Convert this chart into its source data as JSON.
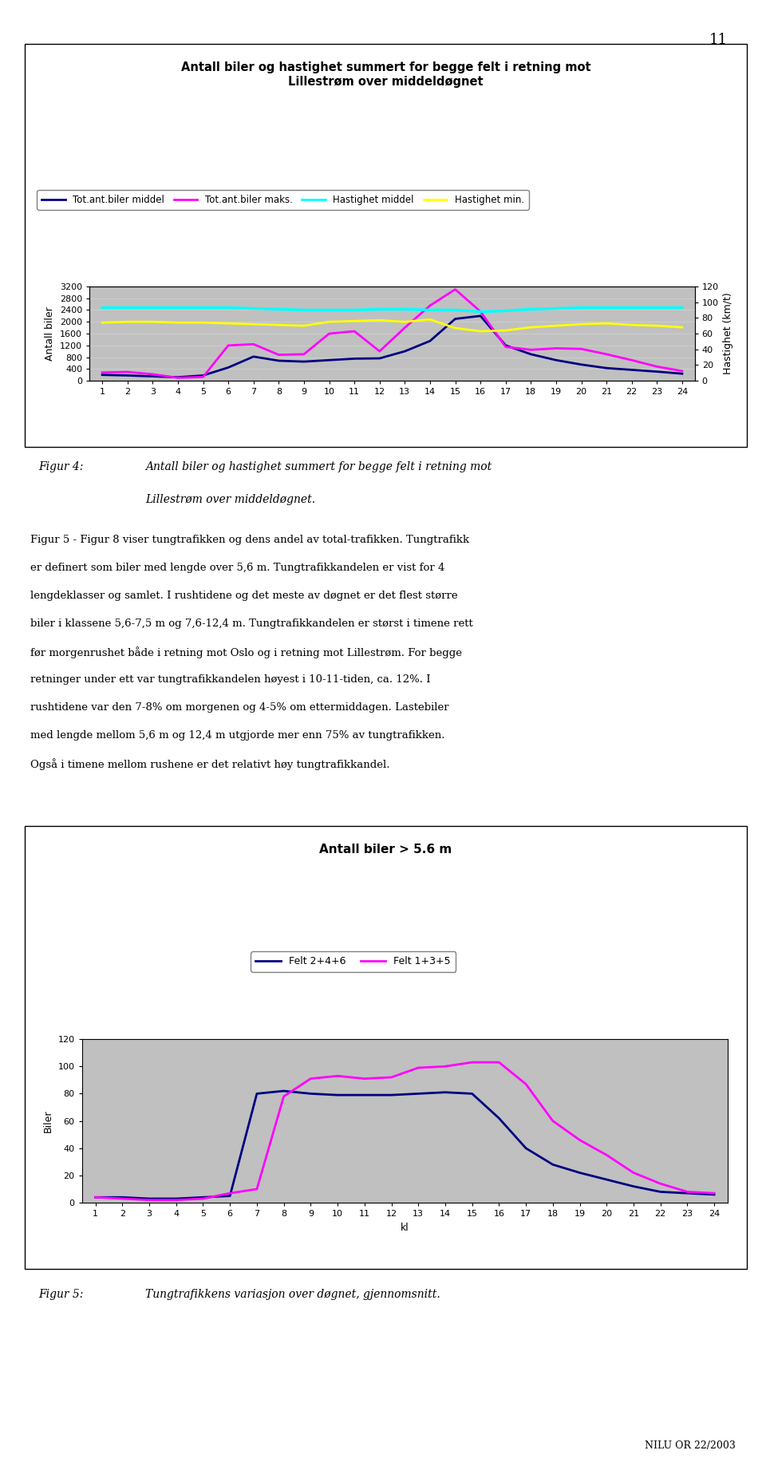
{
  "page_number": "11",
  "chart1": {
    "title": "Antall biler og hastighet summert for begge felt i retning mot\nLillestrøm over middeldøgnet",
    "x": [
      1,
      2,
      3,
      4,
      5,
      6,
      7,
      8,
      9,
      10,
      11,
      12,
      13,
      14,
      15,
      16,
      17,
      18,
      19,
      20,
      21,
      22,
      23,
      24
    ],
    "ylabel_left": "Antall biler",
    "ylabel_right": "Hastighet (km/t)",
    "ylim_left": [
      0,
      3200
    ],
    "ylim_right": [
      0,
      120
    ],
    "yticks_left": [
      0,
      400,
      800,
      1200,
      1600,
      2000,
      2400,
      2800,
      3200
    ],
    "yticks_right": [
      0,
      20,
      40,
      60,
      80,
      100,
      120
    ],
    "background_color": "#c0c0c0",
    "series": {
      "tot_middel": {
        "label": "Tot.ant.biler middel",
        "color": "#000080",
        "linewidth": 2.0,
        "values": [
          200,
          180,
          150,
          120,
          180,
          450,
          820,
          680,
          650,
          700,
          750,
          760,
          1000,
          1350,
          2100,
          2200,
          1200,
          900,
          700,
          550,
          430,
          370,
          310,
          240
        ]
      },
      "tot_maks": {
        "label": "Tot.ant.biler maks.",
        "color": "#ff00ff",
        "linewidth": 2.0,
        "values": [
          280,
          300,
          220,
          100,
          130,
          1200,
          1240,
          880,
          900,
          1600,
          1680,
          1000,
          1800,
          2550,
          3100,
          2350,
          1150,
          1050,
          1100,
          1080,
          900,
          700,
          480,
          330
        ]
      },
      "hast_middel": {
        "label": "Hastighet middel",
        "color": "#00ffff",
        "linewidth": 2.5,
        "axis": "right",
        "values": [
          93,
          93,
          93,
          93,
          93,
          93,
          92,
          91,
          90,
          90,
          90,
          91,
          91,
          90,
          90,
          88,
          89,
          91,
          92,
          93,
          93,
          93,
          93,
          93
        ]
      },
      "hast_min": {
        "label": "Hastighet min.",
        "color": "#ffff00",
        "linewidth": 2.0,
        "axis": "right",
        "values": [
          74,
          75,
          75,
          74,
          74,
          73,
          72,
          71,
          70,
          75,
          76,
          77,
          75,
          78,
          67,
          63,
          64,
          68,
          70,
          72,
          73,
          71,
          70,
          68
        ]
      }
    }
  },
  "chart2": {
    "title": "Antall biler > 5.6 m",
    "x": [
      1,
      2,
      3,
      4,
      5,
      6,
      7,
      8,
      9,
      10,
      11,
      12,
      13,
      14,
      15,
      16,
      17,
      18,
      19,
      20,
      21,
      22,
      23,
      24
    ],
    "xlabel": "kl",
    "ylabel": "Biler",
    "ylim": [
      0,
      120
    ],
    "yticks": [
      0,
      20,
      40,
      60,
      80,
      100,
      120
    ],
    "background_color": "#c0c0c0",
    "series": {
      "felt_246": {
        "label": "Felt 2+4+6",
        "color": "#000080",
        "linewidth": 2.0,
        "values": [
          4,
          4,
          3,
          3,
          4,
          5,
          80,
          82,
          80,
          79,
          79,
          79,
          80,
          81,
          80,
          62,
          40,
          28,
          22,
          17,
          12,
          8,
          7,
          6
        ]
      },
      "felt_135": {
        "label": "Felt 1+3+5",
        "color": "#ff00ff",
        "linewidth": 2.0,
        "values": [
          4,
          3,
          2,
          2,
          3,
          7,
          10,
          78,
          91,
          93,
          91,
          92,
          99,
          100,
          103,
          103,
          87,
          60,
          46,
          35,
          22,
          14,
          8,
          7
        ]
      }
    }
  },
  "figur4_line1": "Antall biler og hastighet summert for begge felt i retning mot",
  "figur4_line2": "Lillestrøm over middeldøgnet.",
  "figur5_text": "Tungtrafikkens variasjon over døgnet, gjennomsnitt.",
  "para_lines": [
    "Figur 5 - Figur 8 viser tungtrafikken og dens andel av total-trafikken. Tungtrafikk",
    "er definert som biler med lengde over 5,6 m. Tungtrafikkandelen er vist for 4",
    "lengdeklasser og samlet. I rushtidene og det meste av døgnet er det flest større",
    "biler i klassene 5,6-7,5 m og 7,6-12,4 m. Tungtrafikkandelen er størst i timene rett",
    "før morgenrushet både i retning mot Oslo og i retning mot Lillestrøm. For begge",
    "retninger under ett var tungtrafikkandelen høyest i 10-11-tiden, ca. 12%. I",
    "rushtidene var den 7-8% om morgenen og 4-5% om ettermiddagen. Lastebiler",
    "med lengde mellom 5,6 m og 12,4 m utgjorde mer enn 75% av tungtrafikken.",
    "Også i timene mellom rushene er det relativt høy tungtrafikkandel."
  ],
  "footer": "NILU OR 22/2003"
}
